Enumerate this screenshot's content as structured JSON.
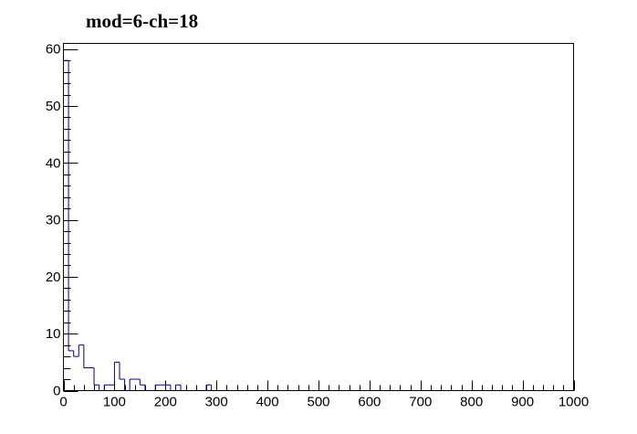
{
  "chart_data": {
    "type": "bar",
    "title": "mod=6-ch=18",
    "xlabel": "",
    "ylabel": "",
    "xlim": [
      0,
      1000
    ],
    "ylim": [
      0,
      61
    ],
    "x_ticks": [
      0,
      100,
      200,
      300,
      400,
      500,
      600,
      700,
      800,
      900,
      1000
    ],
    "y_ticks": [
      0,
      10,
      20,
      30,
      40,
      50,
      60
    ],
    "grid": false,
    "bin_width": 10,
    "bins": [
      {
        "x0": 0,
        "x1": 10,
        "value": 58
      },
      {
        "x0": 10,
        "x1": 20,
        "value": 7
      },
      {
        "x0": 20,
        "x1": 30,
        "value": 6
      },
      {
        "x0": 30,
        "x1": 40,
        "value": 8
      },
      {
        "x0": 40,
        "x1": 50,
        "value": 4
      },
      {
        "x0": 50,
        "x1": 60,
        "value": 4
      },
      {
        "x0": 60,
        "x1": 70,
        "value": 1
      },
      {
        "x0": 70,
        "x1": 80,
        "value": 0
      },
      {
        "x0": 80,
        "x1": 90,
        "value": 1
      },
      {
        "x0": 90,
        "x1": 100,
        "value": 1
      },
      {
        "x0": 100,
        "x1": 110,
        "value": 5
      },
      {
        "x0": 110,
        "x1": 120,
        "value": 2
      },
      {
        "x0": 120,
        "x1": 130,
        "value": 0
      },
      {
        "x0": 130,
        "x1": 140,
        "value": 2
      },
      {
        "x0": 140,
        "x1": 150,
        "value": 2
      },
      {
        "x0": 150,
        "x1": 160,
        "value": 1
      },
      {
        "x0": 160,
        "x1": 170,
        "value": 0
      },
      {
        "x0": 170,
        "x1": 180,
        "value": 0
      },
      {
        "x0": 180,
        "x1": 190,
        "value": 1
      },
      {
        "x0": 190,
        "x1": 200,
        "value": 1
      },
      {
        "x0": 200,
        "x1": 210,
        "value": 1
      },
      {
        "x0": 210,
        "x1": 220,
        "value": 0
      },
      {
        "x0": 220,
        "x1": 230,
        "value": 1
      },
      {
        "x0": 230,
        "x1": 240,
        "value": 0
      },
      {
        "x0": 280,
        "x1": 290,
        "value": 1
      }
    ],
    "line_color": "#000080",
    "axis_color": "#000000",
    "background": "#ffffff"
  }
}
